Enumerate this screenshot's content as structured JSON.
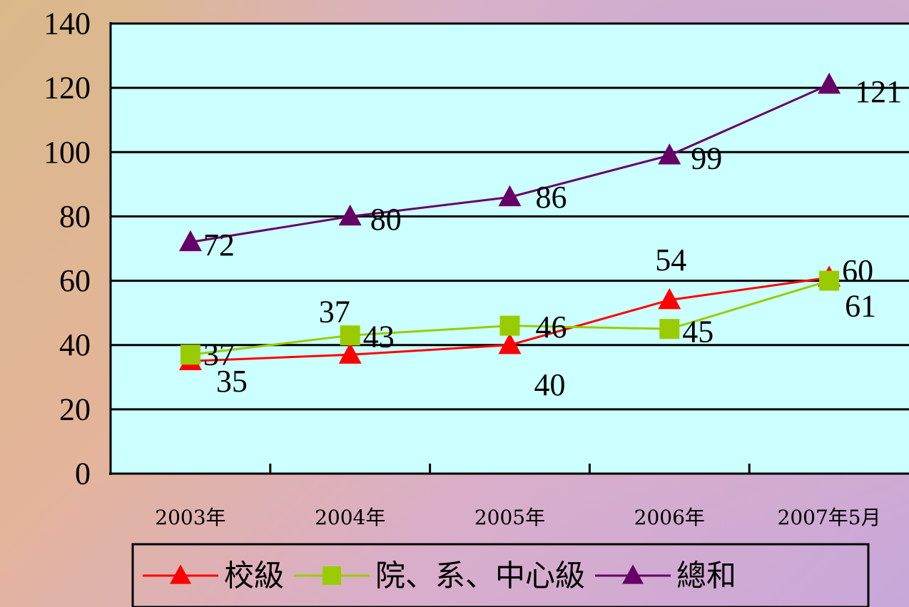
{
  "chart_data": {
    "type": "line",
    "categories": [
      "2003年",
      "2004年",
      "2005年",
      "2006年",
      "2007年5月"
    ],
    "ylim": [
      0,
      140
    ],
    "y_ticks": [
      0,
      20,
      40,
      60,
      80,
      100,
      120,
      140
    ],
    "grid": true,
    "legend_position": "bottom",
    "series": [
      {
        "name": "校級",
        "values": [
          35,
          37,
          40,
          54,
          61
        ],
        "color": "#ff0000",
        "marker": "triangle"
      },
      {
        "name": "院、系、中心級",
        "values": [
          37,
          43,
          46,
          45,
          60
        ],
        "color": "#99cc00",
        "marker": "square"
      },
      {
        "name": "總和",
        "values": [
          72,
          80,
          86,
          99,
          121
        ],
        "color": "#660066",
        "marker": "triangle"
      }
    ],
    "plot_background": "#ccffff"
  }
}
